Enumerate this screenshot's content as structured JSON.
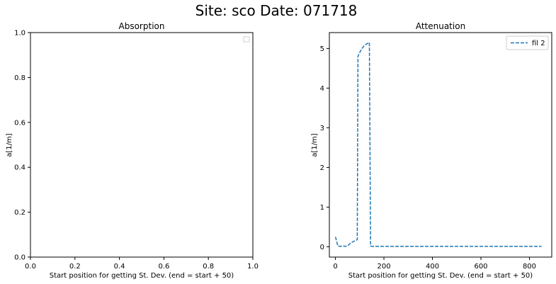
{
  "figure": {
    "suptitle": "Site: sco Date: 071718"
  },
  "chart_data": [
    {
      "type": "line",
      "title": "Absorption",
      "xlabel": "Start position for getting St. Dev. (end = start + 50)",
      "ylabel": "a[1/m]",
      "xlim": [
        0,
        1
      ],
      "ylim": [
        0,
        1
      ],
      "xticks": [
        "0.0",
        "0.2",
        "0.4",
        "0.6",
        "0.8",
        "1.0"
      ],
      "yticks": [
        "0.0",
        "0.2",
        "0.4",
        "0.6",
        "0.8",
        "1.0"
      ],
      "legend": {
        "placement": "top-right",
        "entries": []
      },
      "series": []
    },
    {
      "type": "line",
      "title": "Attenuation",
      "xlabel": "Start position for getting St. Dev. (end = start + 50)",
      "ylabel": "a[1/m]",
      "xlim": [
        -25,
        892
      ],
      "ylim": [
        -0.26,
        5.4
      ],
      "xticks": [
        "0",
        "200",
        "400",
        "600",
        "800"
      ],
      "yticks": [
        "0",
        "1",
        "2",
        "3",
        "4",
        "5"
      ],
      "legend": {
        "placement": "top-right",
        "entries": [
          "fil 2"
        ]
      },
      "series": [
        {
          "name": "fil 2",
          "color": "#1f77b4",
          "style": "dashed",
          "x": [
            0,
            10,
            20,
            30,
            40,
            50,
            60,
            70,
            80,
            90,
            93,
            100,
            110,
            120,
            130,
            140,
            145,
            150,
            200,
            300,
            400,
            500,
            600,
            700,
            800,
            850
          ],
          "y": [
            0.25,
            0.02,
            0.01,
            0.02,
            0.01,
            0.02,
            0.08,
            0.12,
            0.15,
            0.18,
            4.8,
            4.9,
            5.0,
            5.08,
            5.12,
            5.15,
            0.02,
            0.01,
            0.01,
            0.01,
            0.01,
            0.01,
            0.01,
            0.01,
            0.01,
            0.01
          ]
        }
      ]
    }
  ]
}
